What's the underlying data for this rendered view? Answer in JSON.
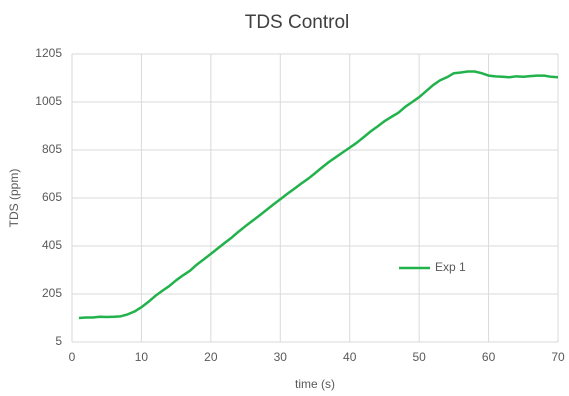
{
  "chart_data": {
    "type": "line",
    "title": "TDS Control",
    "xlabel": "time (s)",
    "ylabel": "TDS (ppm)",
    "x": [
      1,
      2,
      3,
      4,
      5,
      6,
      7,
      8,
      9,
      10,
      11,
      12,
      13,
      14,
      15,
      16,
      17,
      18,
      19,
      20,
      21,
      22,
      23,
      24,
      25,
      26,
      27,
      28,
      29,
      30,
      31,
      32,
      33,
      34,
      35,
      36,
      37,
      38,
      39,
      40,
      41,
      42,
      43,
      44,
      45,
      46,
      47,
      48,
      49,
      50,
      51,
      52,
      53,
      54,
      55,
      56,
      57,
      58,
      59,
      60,
      61,
      62,
      63,
      64,
      65,
      66,
      67,
      68,
      69,
      70
    ],
    "series": [
      {
        "name": "Exp 1",
        "color": "#21b24b",
        "values": [
          105,
          107,
          107,
          110,
          109,
          110,
          112,
          120,
          132,
          150,
          172,
          197,
          218,
          238,
          262,
          283,
          302,
          328,
          350,
          372,
          395,
          418,
          440,
          465,
          488,
          510,
          532,
          555,
          578,
          600,
          622,
          643,
          665,
          685,
          708,
          732,
          755,
          775,
          795,
          815,
          835,
          858,
          882,
          903,
          925,
          943,
          960,
          985,
          1005,
          1025,
          1050,
          1075,
          1095,
          1108,
          1125,
          1128,
          1132,
          1132,
          1125,
          1115,
          1112,
          1110,
          1108,
          1112,
          1110,
          1113,
          1115,
          1115,
          1110,
          1108
        ]
      }
    ],
    "xlim": [
      0,
      70
    ],
    "xticks": [
      0,
      10,
      20,
      30,
      40,
      50,
      60,
      70
    ],
    "ylim": [
      5,
      1205
    ],
    "yticks": [
      5,
      205,
      405,
      605,
      805,
      1005,
      1205
    ],
    "grid": true,
    "legend": "right"
  }
}
